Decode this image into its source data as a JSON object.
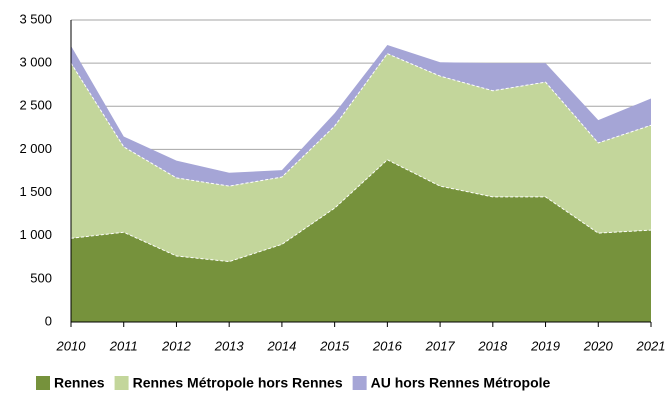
{
  "chart_data": {
    "type": "stacked_area",
    "categories": [
      "2010",
      "2011",
      "2012",
      "2013",
      "2014",
      "2015",
      "2016",
      "2017",
      "2018",
      "2019",
      "2020",
      "2021"
    ],
    "series": [
      {
        "name": "Rennes",
        "color": "#76923c",
        "values": [
          970,
          1040,
          765,
          700,
          900,
          1320,
          1880,
          1575,
          1450,
          1450,
          1030,
          1065
        ]
      },
      {
        "name": "Rennes Métropole hors Rennes",
        "color": "#c3d69b",
        "values": [
          2030,
          990,
          905,
          875,
          780,
          950,
          1230,
          1275,
          1230,
          1330,
          1045,
          1215
        ]
      },
      {
        "name": "AU hors Rennes Métropole",
        "color": "#a5a5d6",
        "values": [
          200,
          120,
          200,
          155,
          80,
          150,
          100,
          160,
          320,
          220,
          265,
          310
        ]
      }
    ],
    "ylim": [
      0,
      3500
    ],
    "yticks": [
      0,
      500,
      {
        "value": 1000,
        "label": "1 000"
      },
      {
        "value": 1500,
        "label": "1 500"
      },
      {
        "value": 2000,
        "label": "2 000"
      },
      {
        "value": 2500,
        "label": "2 500"
      },
      {
        "value": 3000,
        "label": "3 000"
      },
      {
        "value": 3500,
        "label": "3 500"
      }
    ],
    "grid": true,
    "legend": "bottom"
  }
}
